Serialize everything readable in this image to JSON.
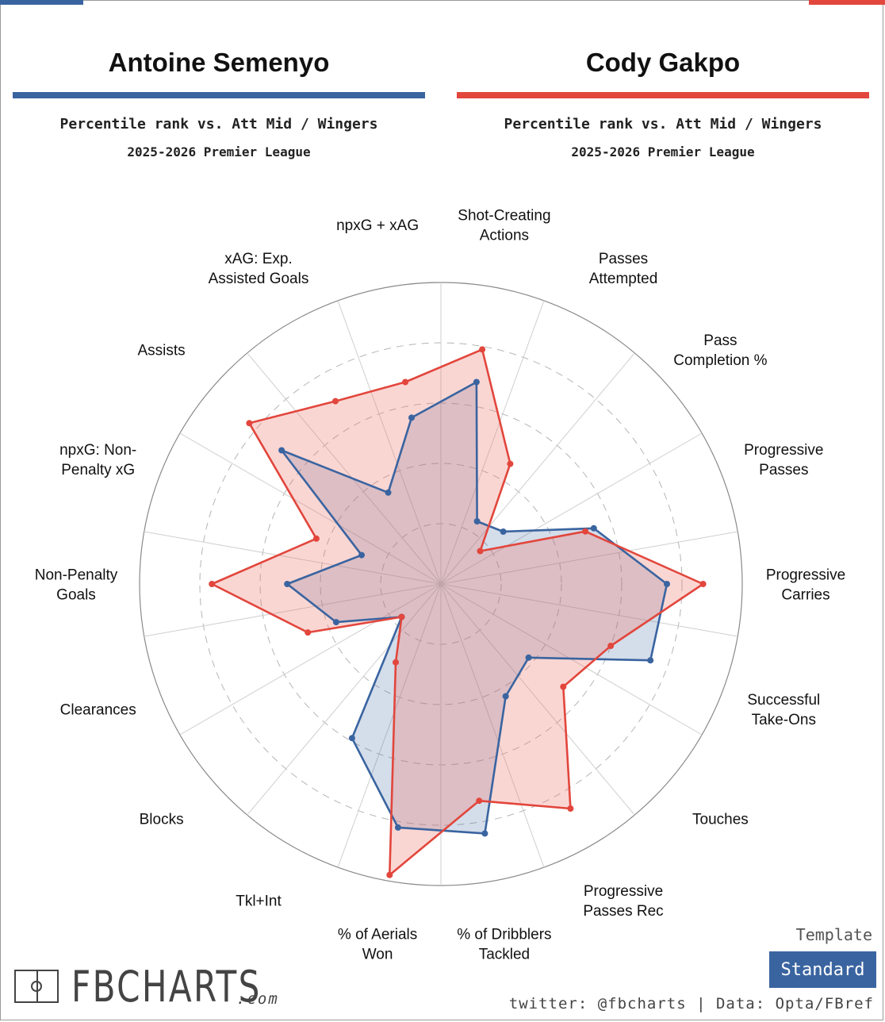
{
  "colors": {
    "player1": "#3a64a0",
    "player1_fill": "rgba(58,100,160,0.22)",
    "player2": "#e2463c",
    "player2_fill": "rgba(240,120,110,0.30)",
    "template_button": "#3a64a0"
  },
  "player1": {
    "name": "Antoine Semenyo",
    "subtitle": "Percentile rank vs. Att Mid / Wingers",
    "season": "2025-2026 Premier League"
  },
  "player2": {
    "name": "Cody Gakpo",
    "subtitle": "Percentile rank vs. Att Mid / Wingers",
    "season": "2025-2026 Premier League"
  },
  "chart_data": {
    "type": "radar",
    "scale": [
      0,
      100
    ],
    "grid_rings": [
      20,
      40,
      60,
      80,
      100
    ],
    "axis_order": "clockwise from top",
    "categories": [
      [
        "Shot-Creating",
        "Actions"
      ],
      [
        "Passes",
        "Attempted"
      ],
      [
        "Pass",
        "Completion %"
      ],
      [
        "Progressive",
        "Passes"
      ],
      [
        "Progressive",
        "Carries"
      ],
      [
        "Successful",
        "Take-Ons"
      ],
      [
        "Touches"
      ],
      [
        "Progressive",
        "Passes Rec"
      ],
      [
        "% of Dribblers",
        "Tackled"
      ],
      [
        "% of Aerials",
        "Won"
      ],
      [
        "Tkl+Int"
      ],
      [
        "Blocks"
      ],
      [
        "Clearances"
      ],
      [
        "Non-Penalty",
        "Goals"
      ],
      [
        "npxG: Non-",
        "Penalty xG"
      ],
      [
        "Assists"
      ],
      [
        "xAG: Exp.",
        "Assisted Goals"
      ],
      [
        "npxG + xAG"
      ]
    ],
    "series": [
      {
        "name": "Antoine Semenyo",
        "values": [
          68,
          24,
          27,
          54,
          75,
          74,
          38,
          43,
          84,
          82,
          59,
          17,
          37,
          51,
          28,
          69,
          35,
          56
        ]
      },
      {
        "name": "Cody Gakpo",
        "values": [
          79,
          46,
          17,
          51,
          87,
          60,
          53,
          86,
          73,
          98,
          30,
          17,
          47,
          76,
          44,
          83,
          70,
          68
        ]
      }
    ]
  },
  "template": {
    "label": "Template",
    "value": "Standard"
  },
  "footer": {
    "logo": "FBCHARTS",
    "logo_suffix": ".com",
    "credits": "twitter: @fbcharts | Data: Opta/FBref"
  }
}
